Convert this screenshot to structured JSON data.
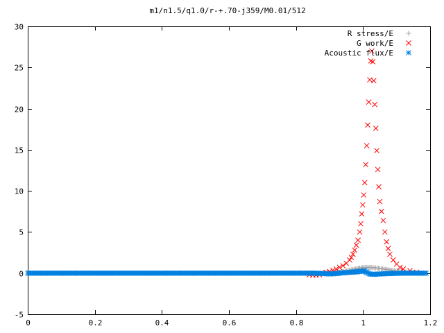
{
  "chart_data": {
    "type": "scatter",
    "title": "m1/n1.5/q1.0/r-+.70-j359/M0.01/512",
    "xlabel": "",
    "ylabel": "",
    "xlim": [
      0,
      1.2
    ],
    "ylim": [
      -5,
      30
    ],
    "xticks": [
      "0",
      "0.2",
      "0.4",
      "0.6",
      "0.8",
      "1",
      "1.2"
    ],
    "yticks": [
      "-5",
      "0",
      "5",
      "10",
      "15",
      "20",
      "25",
      "30"
    ],
    "grid": false,
    "legend_position": "top-right",
    "series": [
      {
        "name": "R stress/E",
        "color": "#a0a0a4",
        "marker": "plus",
        "x": [
          0.85,
          0.88,
          0.91,
          0.94,
          0.96,
          0.98,
          0.99,
          1.0,
          1.005,
          1.01,
          1.015,
          1.02,
          1.025,
          1.03,
          1.04,
          1.05,
          1.06,
          1.08,
          1.1,
          1.12,
          1.15
        ],
        "y": [
          0.0,
          0.05,
          0.1,
          0.15,
          0.2,
          0.3,
          0.4,
          0.5,
          0.6,
          0.7,
          0.6,
          0.5,
          0.45,
          0.4,
          0.35,
          0.3,
          0.25,
          0.2,
          0.15,
          0.1,
          0.05
        ]
      },
      {
        "name": "G work/E",
        "color": "#ff0000",
        "marker": "cross",
        "x": [
          0.84,
          0.85,
          0.86,
          0.87,
          0.88,
          0.89,
          0.9,
          0.91,
          0.92,
          0.93,
          0.94,
          0.95,
          0.96,
          0.965,
          0.97,
          0.975,
          0.98,
          0.985,
          0.99,
          0.993,
          0.996,
          0.999,
          1.002,
          1.005,
          1.008,
          1.011,
          1.014,
          1.017,
          1.02,
          1.023,
          1.026,
          1.029,
          1.032,
          1.035,
          1.038,
          1.041,
          1.044,
          1.047,
          1.05,
          1.055,
          1.06,
          1.065,
          1.07,
          1.075,
          1.08,
          1.09,
          1.1,
          1.11,
          1.12,
          1.14,
          1.16
        ],
        "y": [
          -0.2,
          -0.25,
          -0.25,
          -0.2,
          0.0,
          0.1,
          0.2,
          0.35,
          0.5,
          0.7,
          0.9,
          1.2,
          1.6,
          1.9,
          2.3,
          2.8,
          3.4,
          4.0,
          5.0,
          6.0,
          7.2,
          8.3,
          9.5,
          11.0,
          13.2,
          15.5,
          18.0,
          20.8,
          23.5,
          25.8,
          27.0,
          25.7,
          23.4,
          20.5,
          17.6,
          14.9,
          12.6,
          10.5,
          8.7,
          7.5,
          6.4,
          5.0,
          3.8,
          3.0,
          2.3,
          1.6,
          1.1,
          0.7,
          0.5,
          0.3,
          0.1
        ]
      },
      {
        "name": "Acoustic flux/E",
        "color": "#0080e0",
        "marker": "star",
        "x": [
          0.0,
          0.1,
          0.2,
          0.3,
          0.4,
          0.5,
          0.6,
          0.7,
          0.8,
          0.85,
          0.88,
          0.9,
          0.92,
          0.94,
          0.96,
          0.98,
          0.99,
          1.0,
          1.005,
          1.01,
          1.02,
          1.03,
          1.05,
          1.08,
          1.12,
          1.16,
          1.19
        ],
        "y": [
          0.0,
          0.0,
          0.0,
          0.0,
          0.0,
          0.0,
          0.0,
          0.0,
          0.0,
          0.0,
          -0.05,
          -0.1,
          -0.05,
          0.05,
          0.1,
          0.15,
          0.2,
          0.25,
          0.3,
          0.1,
          -0.1,
          -0.15,
          -0.1,
          -0.05,
          0.0,
          0.0,
          0.0
        ]
      }
    ]
  }
}
